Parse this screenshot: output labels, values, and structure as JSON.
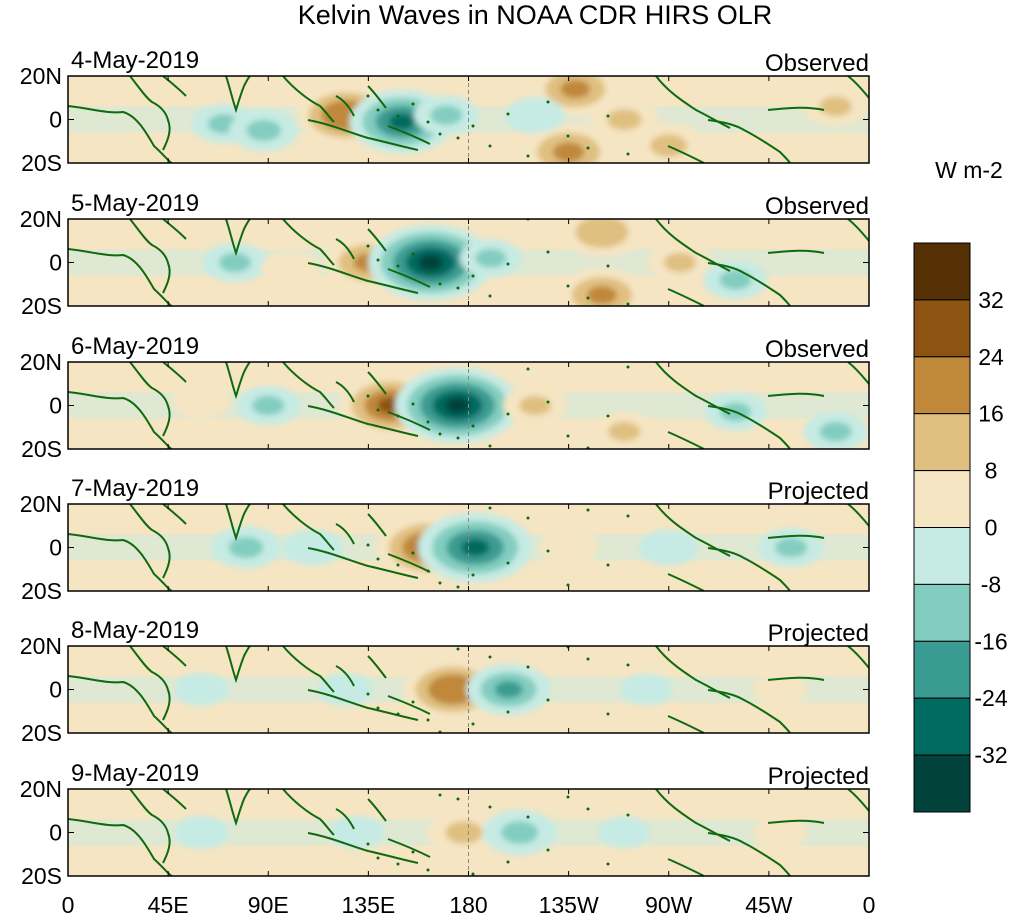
{
  "figure": {
    "title": "Kelvin Waves in NOAA CDR HIRS OLR",
    "panels": [
      {
        "date": "4-May-2019",
        "status": "Observed",
        "anomalies": [
          {
            "lon": 70,
            "lat": -2,
            "value": -10
          },
          {
            "lon": 88,
            "lat": -5,
            "value": -12
          },
          {
            "lon": 125,
            "lat": 2,
            "value": 24
          },
          {
            "lon": 150,
            "lat": -1,
            "value": -26
          },
          {
            "lon": 170,
            "lat": 2,
            "value": -10
          },
          {
            "lon": 228,
            "lat": 14,
            "value": 20
          },
          {
            "lon": 225,
            "lat": -15,
            "value": 22
          },
          {
            "lon": 250,
            "lat": 0,
            "value": 12
          },
          {
            "lon": 270,
            "lat": -12,
            "value": 14
          },
          {
            "lon": 210,
            "lat": 2,
            "value": -8
          },
          {
            "lon": 345,
            "lat": 6,
            "value": 10
          }
        ]
      },
      {
        "date": "5-May-2019",
        "status": "Observed",
        "anomalies": [
          {
            "lon": 75,
            "lat": 0,
            "value": -10
          },
          {
            "lon": 100,
            "lat": -3,
            "value": 8
          },
          {
            "lon": 135,
            "lat": 0,
            "value": 20
          },
          {
            "lon": 163,
            "lat": 0,
            "value": -34
          },
          {
            "lon": 190,
            "lat": 2,
            "value": -9
          },
          {
            "lon": 240,
            "lat": 14,
            "value": 16
          },
          {
            "lon": 240,
            "lat": -15,
            "value": 20
          },
          {
            "lon": 275,
            "lat": 0,
            "value": 10
          },
          {
            "lon": 300,
            "lat": -8,
            "value": -10
          }
        ]
      },
      {
        "date": "6-May-2019",
        "status": "Observed",
        "anomalies": [
          {
            "lon": 60,
            "lat": 2,
            "value": 8
          },
          {
            "lon": 90,
            "lat": 0,
            "value": -10
          },
          {
            "lon": 145,
            "lat": 0,
            "value": 26
          },
          {
            "lon": 175,
            "lat": 0,
            "value": -34
          },
          {
            "lon": 210,
            "lat": 0,
            "value": 10
          },
          {
            "lon": 250,
            "lat": -12,
            "value": 10
          },
          {
            "lon": 300,
            "lat": -3,
            "value": -9
          },
          {
            "lon": 345,
            "lat": -12,
            "value": -10
          }
        ]
      },
      {
        "date": "7-May-2019",
        "status": "Projected",
        "anomalies": [
          {
            "lon": 80,
            "lat": 0,
            "value": -12
          },
          {
            "lon": 110,
            "lat": 0,
            "value": -8
          },
          {
            "lon": 162,
            "lat": 0,
            "value": 26
          },
          {
            "lon": 183,
            "lat": 0,
            "value": -30
          },
          {
            "lon": 225,
            "lat": 0,
            "value": 8
          },
          {
            "lon": 270,
            "lat": 0,
            "value": -8
          },
          {
            "lon": 325,
            "lat": 0,
            "value": -10
          }
        ]
      },
      {
        "date": "8-May-2019",
        "status": "Projected",
        "anomalies": [
          {
            "lon": 60,
            "lat": 0,
            "value": -6
          },
          {
            "lon": 125,
            "lat": 0,
            "value": -6
          },
          {
            "lon": 173,
            "lat": 0,
            "value": 24
          },
          {
            "lon": 198,
            "lat": 0,
            "value": -18
          },
          {
            "lon": 260,
            "lat": 0,
            "value": -5
          },
          {
            "lon": 320,
            "lat": 0,
            "value": 6
          }
        ]
      },
      {
        "date": "9-May-2019",
        "status": "Projected",
        "anomalies": [
          {
            "lon": 60,
            "lat": 0,
            "value": -6
          },
          {
            "lon": 130,
            "lat": 0,
            "value": -6
          },
          {
            "lon": 178,
            "lat": 0,
            "value": 14
          },
          {
            "lon": 203,
            "lat": 0,
            "value": -14
          },
          {
            "lon": 250,
            "lat": 0,
            "value": -5
          },
          {
            "lon": 320,
            "lat": 0,
            "value": 6
          }
        ]
      }
    ],
    "lat_labels": [
      "20N",
      "0",
      "20S"
    ],
    "lon_labels": [
      "0",
      "45E",
      "90E",
      "135E",
      "180",
      "135W",
      "90W",
      "45W",
      "0"
    ],
    "lon_values": [
      0,
      45,
      90,
      135,
      180,
      225,
      270,
      315,
      360
    ],
    "colorbar": {
      "unit": "W m-2",
      "tick_labels": [
        "32",
        "24",
        "16",
        "8",
        "0",
        "-8",
        "-16",
        "-24",
        "-32"
      ],
      "levels": [
        -40,
        -32,
        -24,
        -16,
        -8,
        0,
        8,
        16,
        24,
        32,
        40
      ],
      "colors": [
        "#01423b",
        "#016a61",
        "#3a9b92",
        "#82cdc0",
        "#c6ebe4",
        "#f5e5c3",
        "#e0c080",
        "#c0883a",
        "#8c5311",
        "#553005"
      ]
    },
    "colors": {
      "coastline": "#0f6a0f",
      "dateline": "#8a8a8a",
      "frame": "#000000"
    }
  }
}
